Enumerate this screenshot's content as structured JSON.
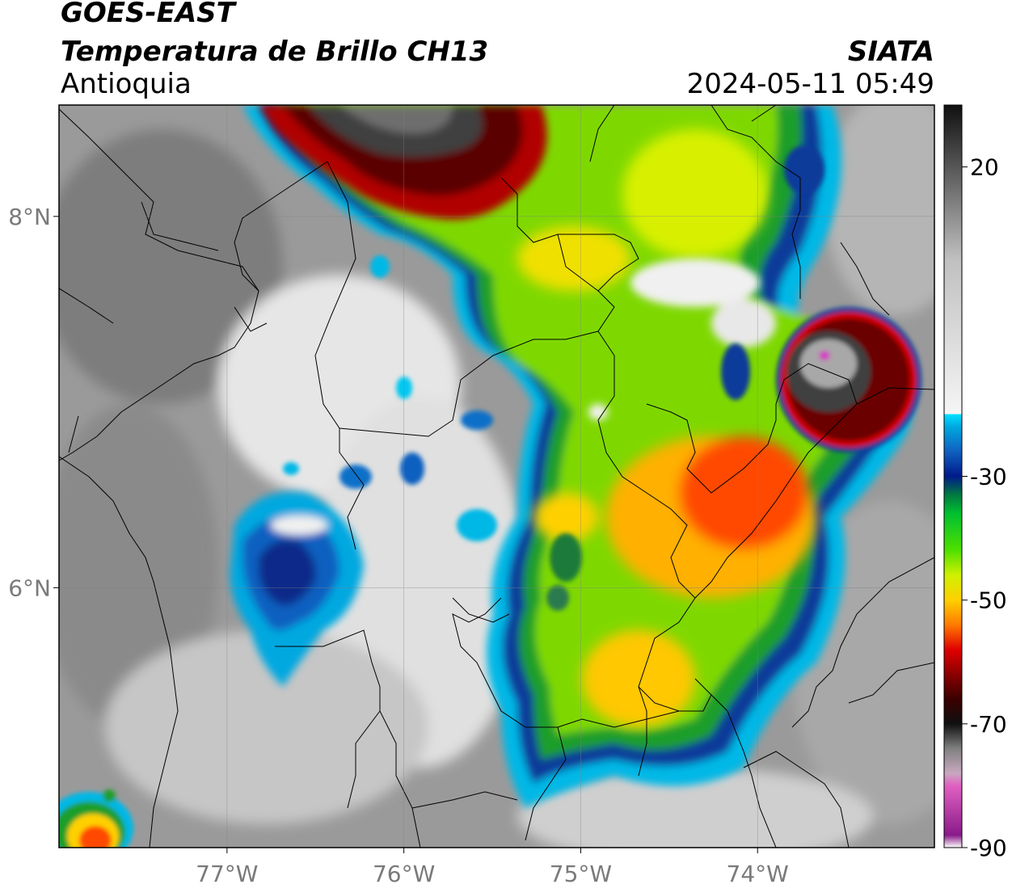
{
  "header": {
    "satellite": "GOES-EAST",
    "product": "Temperatura de Brillo CH13",
    "region": "Antioquia",
    "agency": "SIATA",
    "datetime": "2024-05-11 05:49"
  },
  "map": {
    "lat_range": [
      4.6,
      8.6
    ],
    "lon_range": [
      -77.95,
      -73.0
    ],
    "lat_ticks": [
      {
        "value": 8,
        "label": "8°N"
      },
      {
        "value": 6,
        "label": "6°N"
      }
    ],
    "lon_ticks": [
      {
        "value": -77,
        "label": "77°W"
      },
      {
        "value": -76,
        "label": "76°W"
      },
      {
        "value": -75,
        "label": "75°W"
      },
      {
        "value": -74,
        "label": "74°W"
      }
    ],
    "grid": true
  },
  "colorbar": {
    "range": [
      -90,
      30
    ],
    "ticks": [
      {
        "value": 20,
        "label": "20"
      },
      {
        "value": -30,
        "label": "-30"
      },
      {
        "value": -50,
        "label": "-50"
      },
      {
        "value": -70,
        "label": "-70"
      },
      {
        "value": -90,
        "label": "-90"
      }
    ],
    "stops": [
      {
        "t": -90,
        "color": "#ffffff"
      },
      {
        "t": -88,
        "color": "#8a1a8a"
      },
      {
        "t": -80,
        "color": "#e060c0"
      },
      {
        "t": -78,
        "color": "#c8a8c0"
      },
      {
        "t": -74,
        "color": "#808080"
      },
      {
        "t": -70,
        "color": "#101010"
      },
      {
        "t": -66,
        "color": "#3a0000"
      },
      {
        "t": -62,
        "color": "#8b0000"
      },
      {
        "t": -58,
        "color": "#e00000"
      },
      {
        "t": -54,
        "color": "#ff7a00"
      },
      {
        "t": -50,
        "color": "#ffd000"
      },
      {
        "t": -46,
        "color": "#d0f000"
      },
      {
        "t": -42,
        "color": "#50e000"
      },
      {
        "t": -36,
        "color": "#00c030"
      },
      {
        "t": -33,
        "color": "#007a40"
      },
      {
        "t": -30,
        "color": "#001a8a"
      },
      {
        "t": -26,
        "color": "#1060c0"
      },
      {
        "t": -22,
        "color": "#00a8e0"
      },
      {
        "t": -20,
        "color": "#00e0ff"
      },
      {
        "t": -19.9,
        "color": "#f5f5f5"
      },
      {
        "t": 5,
        "color": "#c0c0c0"
      },
      {
        "t": 30,
        "color": "#101010"
      }
    ]
  }
}
